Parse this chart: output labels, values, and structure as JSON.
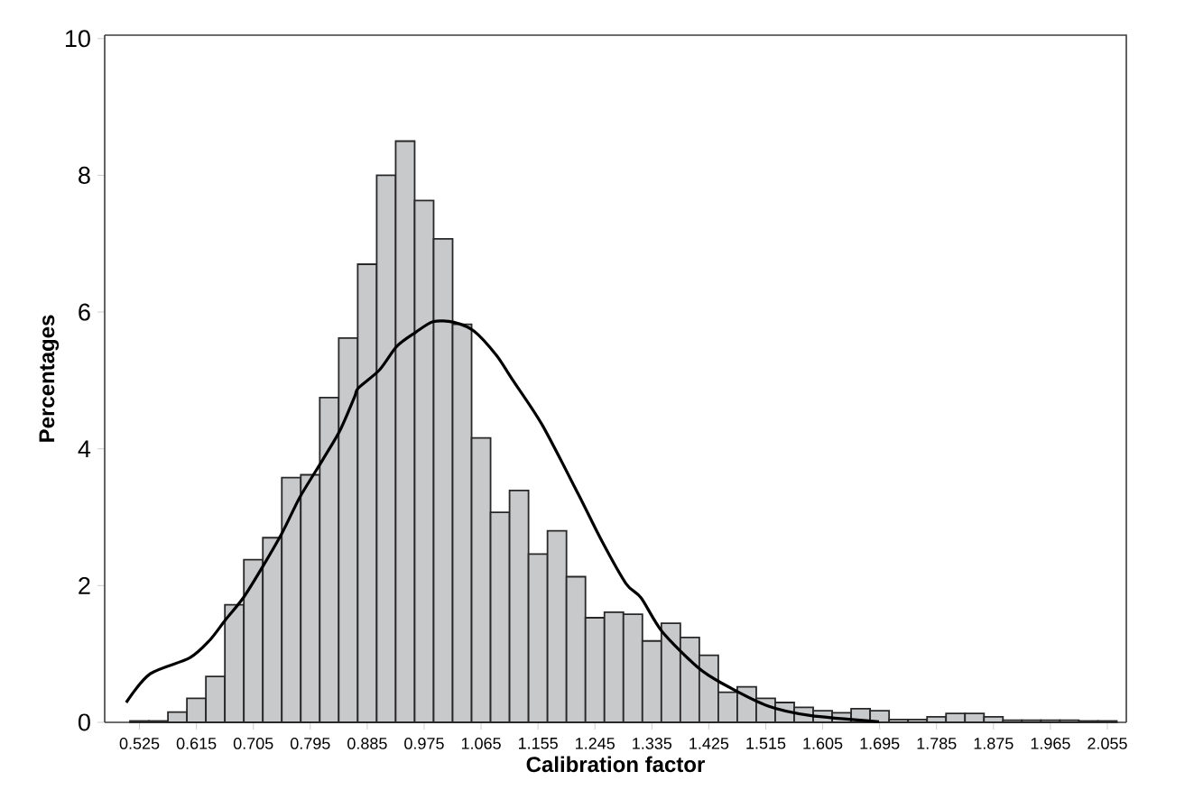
{
  "chart_data": {
    "type": "histogram",
    "xlabel": "Calibration factor",
    "ylabel": "Percentages",
    "bins": [
      0.51,
      0.54,
      0.57,
      0.6,
      0.63,
      0.66,
      0.69,
      0.72,
      0.75,
      0.78,
      0.81,
      0.84,
      0.87,
      0.9,
      0.93,
      0.96,
      0.99,
      1.02,
      1.05,
      1.08,
      1.11,
      1.14,
      1.17,
      1.2,
      1.23,
      1.26,
      1.29,
      1.32,
      1.35,
      1.38,
      1.41,
      1.44,
      1.47,
      1.5,
      1.53,
      1.56,
      1.59,
      1.62,
      1.65,
      1.68,
      1.71,
      1.74,
      1.77,
      1.8,
      1.83,
      1.86,
      1.89,
      1.92,
      1.95,
      1.98,
      2.01,
      2.04,
      2.07
    ],
    "values": [
      0.02,
      0.02,
      0.15,
      0.35,
      0.67,
      1.72,
      2.38,
      2.7,
      3.58,
      3.62,
      4.75,
      5.62,
      6.7,
      8.0,
      8.5,
      7.63,
      7.07,
      5.82,
      4.16,
      3.07,
      3.39,
      2.46,
      2.8,
      2.13,
      1.53,
      1.61,
      1.58,
      1.19,
      1.45,
      1.24,
      0.98,
      0.44,
      0.52,
      0.35,
      0.29,
      0.22,
      0.17,
      0.14,
      0.2,
      0.17,
      0.04,
      0.04,
      0.08,
      0.13,
      0.13,
      0.08,
      0.03,
      0.03,
      0.03,
      0.03,
      0.02,
      0.02
    ],
    "color": "#c8c9cb",
    "series": [
      {
        "type": "line",
        "color": "#000000",
        "x": [
          0.504,
          0.542,
          0.604,
          0.636,
          0.661,
          0.689,
          0.718,
          0.751,
          0.779,
          0.814,
          0.842,
          0.865,
          0.871,
          0.904,
          0.932,
          0.961,
          0.989,
          1.022,
          1.054,
          1.089,
          1.114,
          1.161,
          1.218,
          1.256,
          1.294,
          1.318,
          1.351,
          1.408,
          1.446,
          1.518,
          1.585,
          1.694
        ],
        "values": [
          0.29,
          0.71,
          0.94,
          1.2,
          1.5,
          1.82,
          2.25,
          2.78,
          3.3,
          3.83,
          4.27,
          4.76,
          4.89,
          5.15,
          5.5,
          5.7,
          5.86,
          5.85,
          5.72,
          5.37,
          5.02,
          4.36,
          3.35,
          2.65,
          2.03,
          1.82,
          1.33,
          0.8,
          0.57,
          0.24,
          0.1,
          0.01
        ]
      }
    ],
    "xlim": [
      0.47,
      2.085
    ],
    "ylim": [
      0,
      10.05
    ],
    "xticks": [
      0.525,
      0.615,
      0.705,
      0.795,
      0.885,
      0.975,
      1.065,
      1.155,
      1.245,
      1.335,
      1.425,
      1.515,
      1.605,
      1.695,
      1.785,
      1.875,
      1.965,
      2.055
    ],
    "yticks": [
      0,
      2,
      4,
      6,
      8,
      10
    ],
    "grid": false
  }
}
